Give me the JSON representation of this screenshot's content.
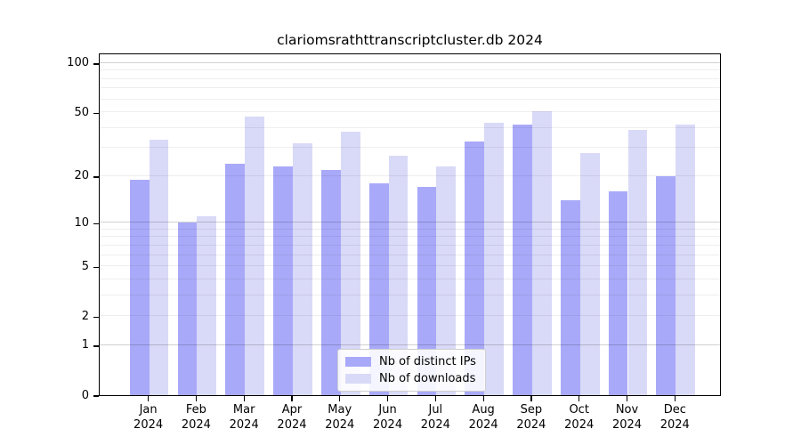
{
  "title": "clariomsrathttranscriptcluster.db 2024",
  "year": "2024",
  "legend": {
    "ips_label": "Nb of distinct IPs",
    "downloads_label": "Nb of downloads"
  },
  "chart_data": {
    "type": "bar",
    "title": "clariomsrathttranscriptcluster.db 2024",
    "categories": [
      "Jan 2024",
      "Feb 2024",
      "Mar 2024",
      "Apr 2024",
      "May 2024",
      "Jun 2024",
      "Jul 2024",
      "Aug 2024",
      "Sep 2024",
      "Oct 2024",
      "Nov 2024",
      "Dec 2024"
    ],
    "month_names": [
      "Jan",
      "Feb",
      "Mar",
      "Apr",
      "May",
      "Jun",
      "Jul",
      "Aug",
      "Sep",
      "Oct",
      "Nov",
      "Dec"
    ],
    "series": [
      {
        "name": "Nb of distinct IPs",
        "color": "#a9a9f9",
        "values": [
          19,
          10,
          24,
          23,
          22,
          18,
          17,
          33,
          42,
          14,
          16,
          20
        ]
      },
      {
        "name": "Nb of downloads",
        "color": "#d9d9f8",
        "values": [
          34,
          11,
          47,
          32,
          38,
          27,
          23,
          43,
          51,
          28,
          39,
          42
        ]
      }
    ],
    "xlabel": "",
    "ylabel": "",
    "yscale": "log1p",
    "ylim": [
      0,
      116
    ],
    "yticks": [
      0,
      1,
      2,
      5,
      10,
      20,
      50,
      100
    ],
    "grid_major": [
      1,
      10,
      100
    ],
    "grid_minor": [
      2,
      3,
      4,
      5,
      6,
      7,
      8,
      9,
      20,
      30,
      40,
      50,
      60,
      70,
      80,
      90
    ],
    "grid": "horizontal",
    "legend_position": "inside-bottom-center"
  }
}
